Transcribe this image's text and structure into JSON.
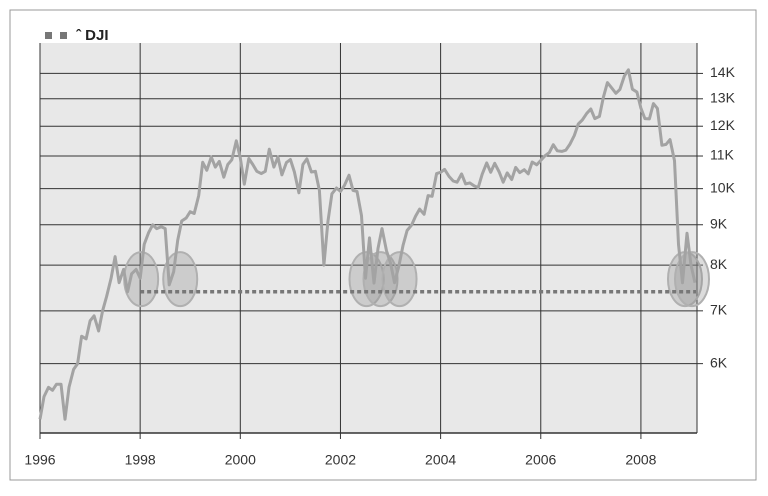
{
  "chart_data": {
    "type": "line",
    "log_scale": true,
    "grid": true,
    "legend": "top-left",
    "series": [
      {
        "name": "ˆ DJI",
        "color": "#a3a3a3",
        "values": [
          5100,
          5450,
          5600,
          5550,
          5650,
          5650,
          5100,
          5600,
          5900,
          6000,
          6500,
          6450,
          6800,
          6900,
          6600,
          7000,
          7300,
          7700,
          8200,
          7600,
          7900,
          7400,
          7800,
          7900,
          7700,
          8500,
          8800,
          9000,
          8900,
          8950,
          8900,
          7550,
          7850,
          8600,
          9100,
          9180,
          9350,
          9300,
          9800,
          10800,
          10550,
          10970,
          10650,
          10830,
          10340,
          10730,
          10880,
          11500,
          10940,
          10130,
          10920,
          10730,
          10520,
          10450,
          10520,
          11220,
          10650,
          10970,
          10410,
          10790,
          10890,
          10500,
          9880,
          10730,
          10910,
          10500,
          10520,
          9950,
          8000,
          9080,
          9850,
          10020,
          9920,
          10100,
          10400,
          9950,
          9920,
          9240,
          7700,
          8660,
          7590,
          8400,
          8900,
          8340,
          8050,
          7600,
          7990,
          8480,
          8850,
          8990,
          9230,
          9420,
          9280,
          9800,
          9780,
          10450,
          10490,
          10580,
          10360,
          10230,
          10190,
          10440,
          10140,
          10170,
          10080,
          10030,
          10430,
          10780,
          10490,
          10770,
          10500,
          10190,
          10470,
          10270,
          10640,
          10480,
          10570,
          10440,
          10810,
          10720,
          10860,
          11000,
          11110,
          11370,
          11170,
          11150,
          11190,
          11380,
          11680,
          12080,
          12220,
          12460,
          12620,
          12270,
          12350,
          13060,
          13630,
          13410,
          13210,
          13360,
          13900,
          14150,
          13370,
          13260,
          12650,
          12270,
          12260,
          12820,
          12640,
          11350,
          11380,
          11540,
          10850,
          8500,
          7600,
          8780,
          8000,
          7600
        ]
      }
    ],
    "x": [
      1996,
      1996.08,
      1996.17,
      1996.25,
      1996.33,
      1996.42,
      1996.5,
      1996.58,
      1996.67,
      1996.75,
      1996.83,
      1996.92,
      1997,
      1997.08,
      1997.17,
      1997.25,
      1997.33,
      1997.42,
      1997.5,
      1997.58,
      1997.67,
      1997.75,
      1997.83,
      1997.92,
      1998,
      1998.08,
      1998.17,
      1998.25,
      1998.33,
      1998.42,
      1998.5,
      1998.58,
      1998.67,
      1998.75,
      1998.83,
      1998.92,
      1999,
      1999.08,
      1999.17,
      1999.25,
      1999.33,
      1999.42,
      1999.5,
      1999.58,
      1999.67,
      1999.75,
      1999.83,
      1999.92,
      2000,
      2000.08,
      2000.17,
      2000.25,
      2000.33,
      2000.42,
      2000.5,
      2000.58,
      2000.67,
      2000.75,
      2000.83,
      2000.92,
      2001,
      2001.08,
      2001.17,
      2001.25,
      2001.33,
      2001.42,
      2001.5,
      2001.58,
      2001.67,
      2001.75,
      2001.83,
      2001.92,
      2002,
      2002.08,
      2002.17,
      2002.25,
      2002.33,
      2002.42,
      2002.5,
      2002.58,
      2002.67,
      2002.75,
      2002.83,
      2002.92,
      2003,
      2003.08,
      2003.17,
      2003.25,
      2003.33,
      2003.42,
      2003.5,
      2003.58,
      2003.67,
      2003.75,
      2003.83,
      2003.92,
      2004,
      2004.08,
      2004.17,
      2004.25,
      2004.33,
      2004.42,
      2004.5,
      2004.58,
      2004.67,
      2004.75,
      2004.83,
      2004.92,
      2005,
      2005.08,
      2005.17,
      2005.25,
      2005.33,
      2005.42,
      2005.5,
      2005.58,
      2005.67,
      2005.75,
      2005.83,
      2005.92,
      2006,
      2006.08,
      2006.17,
      2006.25,
      2006.33,
      2006.42,
      2006.5,
      2006.58,
      2006.67,
      2006.75,
      2006.83,
      2006.92,
      2007,
      2007.08,
      2007.17,
      2007.25,
      2007.33,
      2007.42,
      2007.5,
      2007.58,
      2007.67,
      2007.75,
      2007.83,
      2007.92,
      2008,
      2008.08,
      2008.17,
      2008.25,
      2008.33,
      2008.42,
      2008.5,
      2008.58,
      2008.67,
      2008.75,
      2008.83,
      2008.92,
      2009,
      2009.08
    ],
    "xlim": [
      1996,
      2009.12
    ],
    "xticks": [
      1996,
      1998,
      2000,
      2002,
      2004,
      2006,
      2008
    ],
    "ylim": [
      4900,
      15300
    ],
    "yticks": [
      {
        "value": 6000,
        "label": "6K"
      },
      {
        "value": 7000,
        "label": "7K"
      },
      {
        "value": 8000,
        "label": "8K"
      },
      {
        "value": 9000,
        "label": "9K"
      },
      {
        "value": 10000,
        "label": "10K"
      },
      {
        "value": 11000,
        "label": "11K"
      },
      {
        "value": 12000,
        "label": "12K"
      },
      {
        "value": 13000,
        "label": "13K"
      },
      {
        "value": 14000,
        "label": "14K"
      }
    ],
    "reference_line": {
      "value": 7400,
      "x": [
        1998,
        2009.1
      ],
      "color": "#777777"
    },
    "highlights": [
      {
        "x": 1998.02,
        "y": 7680
      },
      {
        "x": 1998.8,
        "y": 7680
      },
      {
        "x": 2002.52,
        "y": 7680
      },
      {
        "x": 2002.8,
        "y": 7680
      },
      {
        "x": 2003.18,
        "y": 7680
      },
      {
        "x": 2008.88,
        "y": 7680
      },
      {
        "x": 2009.02,
        "y": 7680
      }
    ]
  }
}
